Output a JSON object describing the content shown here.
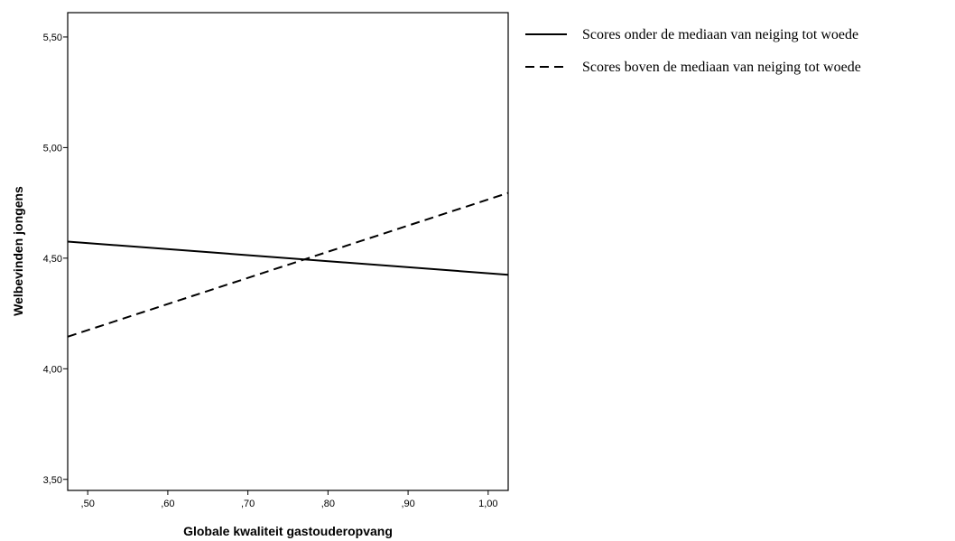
{
  "chart_data": {
    "type": "line",
    "title": "",
    "xlabel": "Globale kwaliteit gastouderopvang",
    "ylabel": "Welbevinden jongens",
    "xlim": [
      0.475,
      1.025
    ],
    "ylim": [
      3.45,
      5.61
    ],
    "x_ticks": [
      {
        "value": 0.5,
        "label": ",50"
      },
      {
        "value": 0.6,
        "label": ",60"
      },
      {
        "value": 0.7,
        "label": ",70"
      },
      {
        "value": 0.8,
        "label": ",80"
      },
      {
        "value": 0.9,
        "label": ",90"
      },
      {
        "value": 1.0,
        "label": "1,00"
      }
    ],
    "y_ticks": [
      {
        "value": 3.5,
        "label": "3,50"
      },
      {
        "value": 4.0,
        "label": "4,00"
      },
      {
        "value": 4.5,
        "label": "4,50"
      },
      {
        "value": 5.0,
        "label": "5,00"
      },
      {
        "value": 5.5,
        "label": "5,50"
      }
    ],
    "grid": false,
    "legend_position": "right-top",
    "series": [
      {
        "name": "Scores onder de mediaan van neiging tot woede",
        "style": "solid",
        "color": "#000000",
        "x": [
          0.475,
          1.025
        ],
        "y": [
          4.575,
          4.425
        ]
      },
      {
        "name": "Scores boven de mediaan van neiging tot woede",
        "style": "dashed",
        "color": "#000000",
        "x": [
          0.475,
          1.025
        ],
        "y": [
          4.145,
          4.795
        ]
      }
    ]
  }
}
